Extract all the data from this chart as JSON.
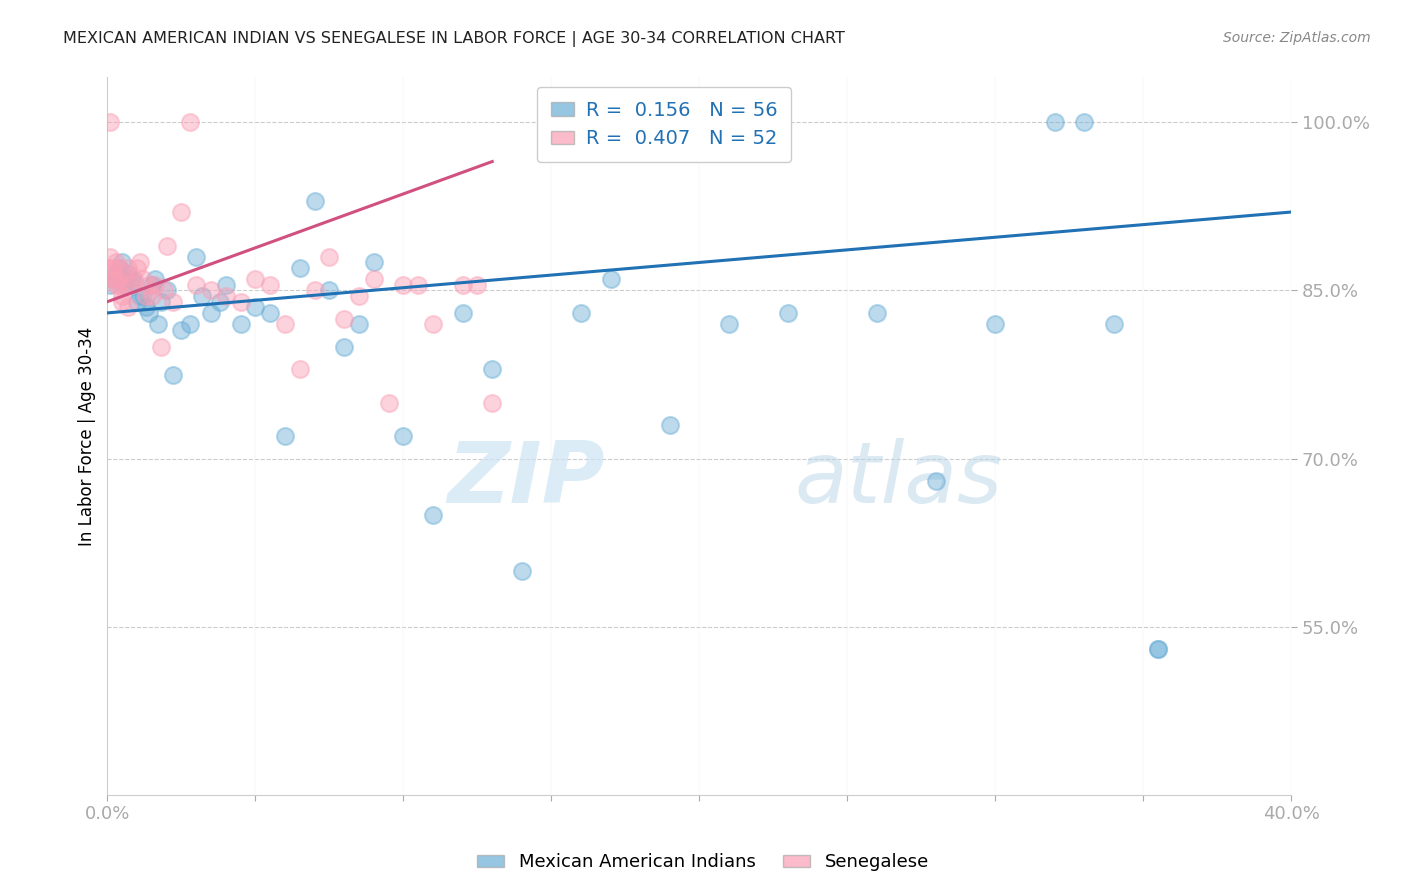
{
  "title": "MEXICAN AMERICAN INDIAN VS SENEGALESE IN LABOR FORCE | AGE 30-34 CORRELATION CHART",
  "source": "Source: ZipAtlas.com",
  "xlabel": "",
  "ylabel": "In Labor Force | Age 30-34",
  "xlim": [
    0.0,
    0.4
  ],
  "ylim": [
    0.4,
    1.04
  ],
  "xtick_positions": [
    0.0,
    0.05,
    0.1,
    0.15,
    0.2,
    0.25,
    0.3,
    0.35,
    0.4
  ],
  "xtick_labels": [
    "0.0%",
    "",
    "",
    "",
    "",
    "",
    "",
    "",
    "40.0%"
  ],
  "ytick_positions": [
    0.55,
    0.7,
    0.85,
    1.0
  ],
  "ytick_labels": [
    "55.0%",
    "70.0%",
    "85.0%",
    "100.0%"
  ],
  "blue_R": 0.156,
  "blue_N": 56,
  "pink_R": 0.407,
  "pink_N": 52,
  "blue_color": "#6baed6",
  "pink_color": "#fa9fb5",
  "blue_line_color": "#2171b5",
  "pink_line_color": "#d05080",
  "watermark_zip": "ZIP",
  "watermark_atlas": "atlas",
  "blue_label": "Mexican American Indians",
  "pink_label": "Senegalese",
  "blue_x": [
    0.001,
    0.002,
    0.003,
    0.004,
    0.005,
    0.005,
    0.006,
    0.007,
    0.008,
    0.009,
    0.01,
    0.011,
    0.012,
    0.013,
    0.014,
    0.015,
    0.016,
    0.017,
    0.018,
    0.02,
    0.022,
    0.025,
    0.028,
    0.03,
    0.032,
    0.035,
    0.038,
    0.04,
    0.045,
    0.05,
    0.055,
    0.06,
    0.065,
    0.07,
    0.075,
    0.08,
    0.085,
    0.09,
    0.1,
    0.11,
    0.12,
    0.13,
    0.14,
    0.16,
    0.17,
    0.19,
    0.21,
    0.23,
    0.26,
    0.28,
    0.3,
    0.32,
    0.33,
    0.34,
    0.355,
    0.355
  ],
  "blue_y": [
    0.855,
    0.86,
    0.865,
    0.87,
    0.86,
    0.875,
    0.855,
    0.865,
    0.86,
    0.858,
    0.84,
    0.845,
    0.845,
    0.835,
    0.83,
    0.855,
    0.86,
    0.82,
    0.84,
    0.85,
    0.775,
    0.815,
    0.82,
    0.88,
    0.845,
    0.83,
    0.84,
    0.855,
    0.82,
    0.835,
    0.83,
    0.72,
    0.87,
    0.93,
    0.85,
    0.8,
    0.82,
    0.875,
    0.72,
    0.65,
    0.83,
    0.78,
    0.6,
    0.83,
    0.86,
    0.73,
    0.82,
    0.83,
    0.83,
    0.68,
    0.82,
    1.0,
    1.0,
    0.82,
    0.53,
    0.53
  ],
  "pink_x": [
    0.001,
    0.001,
    0.001,
    0.002,
    0.002,
    0.002,
    0.003,
    0.003,
    0.003,
    0.004,
    0.004,
    0.005,
    0.005,
    0.006,
    0.006,
    0.007,
    0.007,
    0.008,
    0.009,
    0.01,
    0.011,
    0.012,
    0.013,
    0.014,
    0.015,
    0.016,
    0.018,
    0.019,
    0.02,
    0.022,
    0.025,
    0.028,
    0.03,
    0.035,
    0.04,
    0.045,
    0.05,
    0.055,
    0.06,
    0.065,
    0.07,
    0.075,
    0.08,
    0.085,
    0.09,
    0.095,
    0.1,
    0.105,
    0.11,
    0.12,
    0.125,
    0.13
  ],
  "pink_y": [
    1.0,
    0.88,
    0.87,
    0.865,
    0.87,
    0.86,
    0.875,
    0.86,
    0.855,
    0.855,
    0.87,
    0.84,
    0.845,
    0.865,
    0.855,
    0.87,
    0.835,
    0.855,
    0.86,
    0.87,
    0.875,
    0.86,
    0.845,
    0.855,
    0.845,
    0.855,
    0.8,
    0.85,
    0.89,
    0.84,
    0.92,
    1.0,
    0.855,
    0.85,
    0.845,
    0.84,
    0.86,
    0.855,
    0.82,
    0.78,
    0.85,
    0.88,
    0.825,
    0.845,
    0.86,
    0.75,
    0.855,
    0.855,
    0.82,
    0.855,
    0.855,
    0.75
  ]
}
